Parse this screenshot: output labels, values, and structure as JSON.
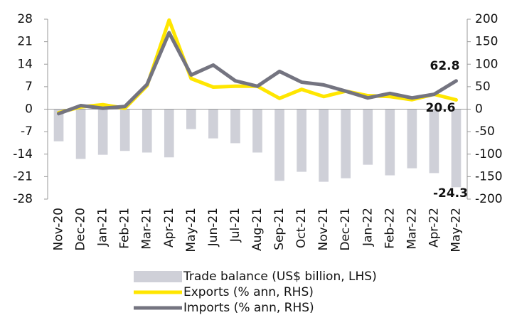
{
  "chart_data": {
    "type": "bar-line",
    "categories": [
      "Nov-20",
      "Dec-20",
      "Jan-21",
      "Feb-21",
      "Mar-21",
      "Apr-21",
      "May-21",
      "Jun-21",
      "Jul-21",
      "Aug-21",
      "Sep-21",
      "Oct-21",
      "Nov-21",
      "Dec-21",
      "Jan-22",
      "Feb-22",
      "Mar-22",
      "Apr-22",
      "May-22"
    ],
    "series": [
      {
        "name": "Trade balance (US$ billion, LHS)",
        "type": "bar",
        "color": "#cfd0d8",
        "values": [
          -10.0,
          -15.5,
          -14.2,
          -13.0,
          -13.5,
          -15.0,
          -6.2,
          -9.1,
          -10.6,
          -13.5,
          -22.3,
          -19.5,
          -22.6,
          -21.5,
          -17.3,
          -20.6,
          -18.4,
          -19.9,
          -24.3
        ]
      },
      {
        "name": "Exports (% ann, RHS)",
        "type": "line",
        "axis": "y2",
        "color": "#ffe600",
        "values": [
          -8,
          5,
          10,
          2,
          52,
          198,
          68,
          49,
          51,
          51,
          24,
          44,
          28,
          40,
          30,
          28,
          21,
          33,
          20.6
        ]
      },
      {
        "name": "Imports (% ann, RHS)",
        "type": "line",
        "axis": "y2",
        "color": "#747480",
        "values": [
          -10,
          8,
          2,
          6,
          55,
          170,
          76,
          98,
          63,
          51,
          84,
          60,
          54,
          40,
          25,
          35,
          25,
          33,
          62.8
        ]
      }
    ],
    "ylim": [
      -28,
      28
    ],
    "yticks": [
      -28,
      -21,
      -14,
      -7,
      0,
      7,
      14,
      21,
      28
    ],
    "y2lim": [
      -200,
      200
    ],
    "y2ticks": [
      -200,
      -150,
      -100,
      -50,
      0,
      50,
      100,
      150,
      200
    ]
  }
}
